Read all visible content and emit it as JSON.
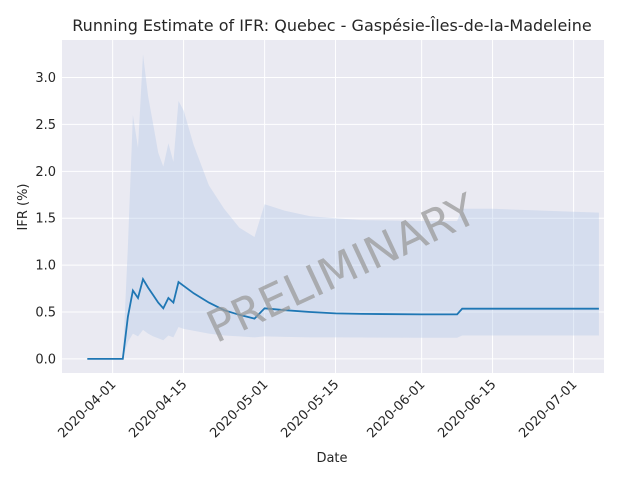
{
  "chart_data": {
    "type": "line",
    "title": "Running Estimate of IFR: Quebec - Gaspésie-Îles-de-la-Madeleine",
    "xlabel": "Date",
    "ylabel": "IFR (%)",
    "watermark": "PRELIMINARY",
    "grid": true,
    "xlim": [
      "2020-03-22",
      "2020-07-07"
    ],
    "ylim": [
      -0.15,
      3.4
    ],
    "x_ticks": [
      "2020-04-01",
      "2020-04-15",
      "2020-05-01",
      "2020-05-15",
      "2020-06-01",
      "2020-06-15",
      "2020-07-01"
    ],
    "y_ticks": [
      0.0,
      0.5,
      1.0,
      1.5,
      2.0,
      2.5,
      3.0
    ],
    "y_tick_labels": [
      "0.0",
      "0.5",
      "1.0",
      "1.5",
      "2.0",
      "2.5",
      "3.0"
    ],
    "colors": {
      "line": "#1f77b4",
      "band": "#aec7e8",
      "background": "#eaeaf2",
      "grid": "#ffffff"
    },
    "series": [
      {
        "x": [
          "2020-03-27",
          "2020-04-03",
          "2020-04-04",
          "2020-04-05",
          "2020-04-06",
          "2020-04-07",
          "2020-04-08",
          "2020-04-09",
          "2020-04-10",
          "2020-04-11",
          "2020-04-12",
          "2020-04-13",
          "2020-04-14",
          "2020-04-15",
          "2020-04-17",
          "2020-04-20",
          "2020-04-23",
          "2020-04-26",
          "2020-04-29",
          "2020-05-01",
          "2020-05-05",
          "2020-05-10",
          "2020-05-15",
          "2020-05-20",
          "2020-06-01",
          "2020-06-08",
          "2020-06-09",
          "2020-06-15",
          "2020-07-01",
          "2020-07-06"
        ],
        "y": [
          0.0,
          0.0,
          0.45,
          0.73,
          0.65,
          0.85,
          0.76,
          0.68,
          0.6,
          0.54,
          0.65,
          0.6,
          0.82,
          0.78,
          0.7,
          0.6,
          0.52,
          0.47,
          0.43,
          0.54,
          0.52,
          0.5,
          0.485,
          0.48,
          0.475,
          0.475,
          0.535,
          0.535,
          0.535,
          0.535
        ],
        "lower": [
          0.0,
          0.0,
          0.18,
          0.27,
          0.24,
          0.31,
          0.27,
          0.24,
          0.22,
          0.2,
          0.25,
          0.23,
          0.34,
          0.32,
          0.3,
          0.27,
          0.25,
          0.24,
          0.23,
          0.24,
          0.235,
          0.23,
          0.23,
          0.228,
          0.225,
          0.225,
          0.25,
          0.25,
          0.25,
          0.25
        ],
        "upper": [
          0.0,
          0.0,
          1.2,
          2.6,
          2.25,
          3.25,
          2.8,
          2.5,
          2.2,
          2.05,
          2.3,
          2.1,
          2.75,
          2.65,
          2.28,
          1.85,
          1.6,
          1.4,
          1.3,
          1.65,
          1.58,
          1.52,
          1.5,
          1.48,
          1.47,
          1.47,
          1.6,
          1.6,
          1.57,
          1.56
        ]
      }
    ]
  }
}
